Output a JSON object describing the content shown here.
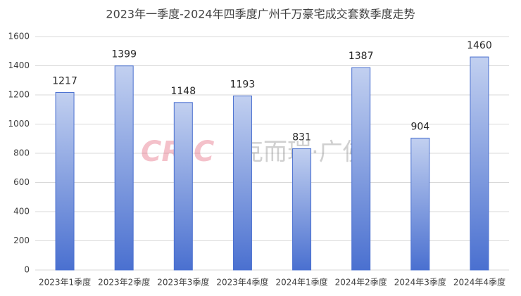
{
  "chart_data": {
    "type": "bar",
    "title": "2023年一季度-2024年四季度广州千万豪宅成交套数季度走势",
    "categories": [
      "2023年1季度",
      "2023年2季度",
      "2023年3季度",
      "2023年4季度",
      "2024年1季度",
      "2024年2季度",
      "2024年3季度",
      "2024年4季度"
    ],
    "values": [
      1217,
      1399,
      1148,
      1193,
      831,
      1387,
      904,
      1460
    ],
    "color": "#4a70d0",
    "ylim": [
      0,
      1600
    ],
    "yticks": [
      0,
      200,
      400,
      600,
      800,
      1000,
      1200,
      1400,
      1600
    ],
    "grid": true,
    "watermark": {
      "brand": "CRIC",
      "name": "克而瑞·广佛"
    }
  }
}
